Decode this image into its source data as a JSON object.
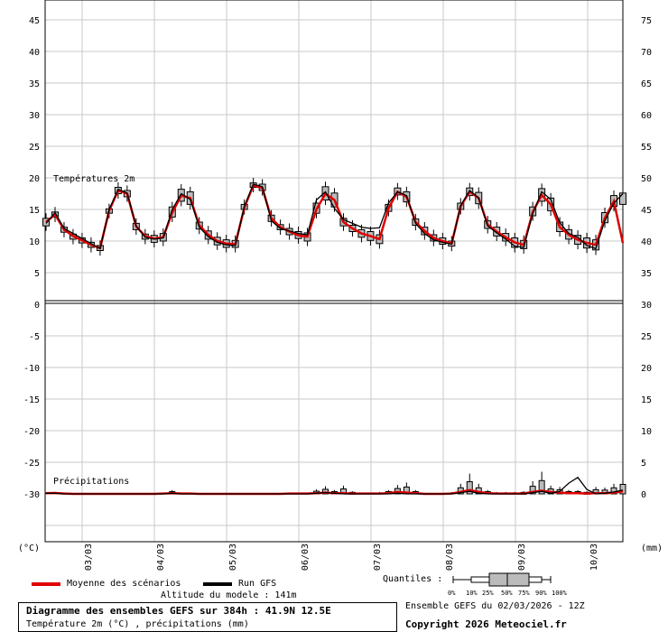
{
  "chart_data": {
    "type": "line",
    "temp_panel_label": "Températures 2m",
    "precip_panel_label": "Précipitations",
    "left_unit": "(°C)",
    "right_unit": "(mm)",
    "temp_left_ticks": [
      45,
      40,
      35,
      30,
      25,
      20,
      15,
      10,
      5,
      0
    ],
    "temp_right_ticks": [
      75,
      70,
      65,
      60,
      55,
      50,
      45,
      40,
      35,
      30
    ],
    "precip_left_ticks": [
      -5,
      -10,
      -15,
      -20,
      -25,
      -30
    ],
    "precip_right_ticks": [
      25,
      20,
      15,
      10,
      5,
      0
    ],
    "x_labels": [
      "03/03",
      "04/03",
      "05/03",
      "06/03",
      "07/03",
      "08/03",
      "09/03",
      "10/03"
    ],
    "x_hours": [
      0,
      6,
      12,
      18,
      24,
      30,
      36,
      42,
      48,
      54,
      60,
      66,
      72,
      78,
      84,
      90,
      96,
      102,
      108,
      114,
      120,
      126,
      132,
      138,
      144,
      150,
      156,
      162,
      168,
      174,
      180,
      186,
      192,
      198,
      204,
      210,
      216,
      222,
      228,
      234,
      240,
      246,
      252,
      258,
      264,
      270,
      276,
      282,
      288,
      294,
      300,
      306,
      312,
      318,
      324,
      330,
      336,
      342,
      348,
      354,
      360,
      366,
      372,
      378,
      384
    ],
    "series": [
      {
        "name": "Moyenne des scénarios",
        "color": "#e00000",
        "values": [
          13,
          14.2,
          11.8,
          10.8,
          10.1,
          9.4,
          8.9,
          14.8,
          18,
          17.5,
          12.3,
          10.8,
          10.4,
          10.6,
          14.5,
          17.2,
          16.8,
          12.5,
          11,
          10,
          9.6,
          9.5,
          15.3,
          18.8,
          18.4,
          13.6,
          12.2,
          11.5,
          10.9,
          10.7,
          15,
          17.5,
          16.5,
          13,
          12,
          11.2,
          10.8,
          10.3,
          15.2,
          17.8,
          17,
          13,
          11.6,
          10.5,
          10,
          9.6,
          15.5,
          17.8,
          16.8,
          12.6,
          11.5,
          10.6,
          9.8,
          9.4,
          14.6,
          17.3,
          15.8,
          12.2,
          11,
          10.2,
          9.7,
          9.4,
          13.6,
          16.3,
          9.7
        ]
      },
      {
        "name": "Run GFS",
        "color": "#000000",
        "values": [
          12.8,
          14.5,
          12,
          11.2,
          10.4,
          9.6,
          8.8,
          15,
          18.2,
          17.6,
          12.4,
          10.6,
          10.3,
          10.5,
          15,
          17.5,
          16.6,
          12.2,
          10.7,
          9.8,
          9.4,
          9.3,
          15.5,
          19,
          18.6,
          13.2,
          12,
          11.6,
          11.2,
          11,
          16.5,
          17.8,
          15.2,
          13.4,
          12.8,
          12.2,
          12,
          12.1,
          16,
          17.8,
          17.2,
          12.8,
          11.2,
          10.2,
          9.8,
          9.5,
          15.6,
          18,
          16.8,
          12.4,
          11.3,
          10.3,
          9.2,
          9,
          14.4,
          17.8,
          16.6,
          12.9,
          11.2,
          10.6,
          9.3,
          8.8,
          13.2,
          16,
          17.5
        ]
      }
    ],
    "temp_spread": [
      [
        12.4,
        13.6
      ],
      [
        13.8,
        14.6
      ],
      [
        11.4,
        12.2
      ],
      [
        10.3,
        11.1
      ],
      [
        9.7,
        10.5
      ],
      [
        9,
        9.8
      ],
      [
        8.5,
        9.3
      ],
      [
        14.4,
        15.1
      ],
      [
        17.5,
        18.5
      ],
      [
        17,
        18
      ],
      [
        11.8,
        12.8
      ],
      [
        10.3,
        11.1
      ],
      [
        9.8,
        10.9
      ],
      [
        10,
        11.2
      ],
      [
        13.8,
        15.4
      ],
      [
        16.3,
        18.2
      ],
      [
        15.8,
        17.8
      ],
      [
        11.9,
        13
      ],
      [
        10.3,
        11.6
      ],
      [
        9.4,
        10.6
      ],
      [
        9,
        10.2
      ],
      [
        9,
        10.1
      ],
      [
        15,
        15.8
      ],
      [
        18.5,
        19.2
      ],
      [
        18,
        19
      ],
      [
        13.1,
        14.1
      ],
      [
        11.8,
        12.6
      ],
      [
        11,
        12
      ],
      [
        10.4,
        11.5
      ],
      [
        10,
        11.3
      ],
      [
        14.4,
        16
      ],
      [
        16.5,
        18.6
      ],
      [
        15.4,
        17.6
      ],
      [
        12.4,
        13.6
      ],
      [
        11.5,
        12.5
      ],
      [
        10.6,
        11.8
      ],
      [
        10.1,
        11.5
      ],
      [
        9.6,
        11
      ],
      [
        14.7,
        15.8
      ],
      [
        17.3,
        18.4
      ],
      [
        16.2,
        17.8
      ],
      [
        12.5,
        13.5
      ],
      [
        11,
        12.2
      ],
      [
        10,
        11
      ],
      [
        9.5,
        10.5
      ],
      [
        9.2,
        10
      ],
      [
        15,
        16
      ],
      [
        17.2,
        18.4
      ],
      [
        15.9,
        17.7
      ],
      [
        12,
        13.2
      ],
      [
        10.8,
        12.2
      ],
      [
        10,
        11.2
      ],
      [
        9,
        10.5
      ],
      [
        8.8,
        10.1
      ],
      [
        14,
        15.4
      ],
      [
        16.3,
        18.3
      ],
      [
        14.8,
        16.8
      ],
      [
        11.5,
        13
      ],
      [
        10.3,
        11.8
      ],
      [
        9.5,
        10.9
      ],
      [
        8.9,
        10.5
      ],
      [
        8.6,
        10.2
      ],
      [
        12.9,
        14.5
      ],
      [
        15.5,
        17.2
      ],
      [
        15.8,
        17.6
      ]
    ],
    "precip": [
      0.1,
      0.15,
      0.05,
      0,
      0,
      0,
      0,
      0,
      0,
      0,
      0,
      0,
      0,
      0.05,
      0.1,
      0.05,
      0.05,
      0,
      0,
      0,
      0,
      0,
      0,
      0,
      0,
      0,
      0,
      0.05,
      0.05,
      0.05,
      0.1,
      0.2,
      0.1,
      0.1,
      0.05,
      0.05,
      0.05,
      0.05,
      0.1,
      0.3,
      0.2,
      0.1,
      0,
      0,
      0,
      0.05,
      0.3,
      0.6,
      0.3,
      0.1,
      0.05,
      0.05,
      0.05,
      0.05,
      0.3,
      0.5,
      0.3,
      0.2,
      0.1,
      0.1,
      0.05,
      0.1,
      0.1,
      0.2,
      0.4
    ],
    "precip_gfs": [
      0.1,
      0.1,
      0,
      0,
      0,
      0,
      0,
      0,
      0,
      0,
      0,
      0,
      0,
      0,
      0.1,
      0,
      0,
      0,
      0,
      0,
      0,
      0,
      0,
      0,
      0,
      0,
      0,
      0,
      0,
      0,
      0.1,
      0.2,
      0.1,
      0,
      0,
      0,
      0,
      0,
      0,
      0.1,
      0,
      0,
      0,
      0,
      0,
      0,
      0.2,
      0.4,
      0.1,
      0,
      0,
      0,
      0,
      0,
      0.2,
      0.4,
      0.1,
      0.4,
      1.7,
      2.6,
      0.7,
      0,
      0.1,
      0.3,
      0.6
    ],
    "precip_max": [
      0.2,
      0.3,
      0.1,
      0,
      0,
      0,
      0,
      0,
      0,
      0,
      0,
      0,
      0.1,
      0.2,
      0.6,
      0.2,
      0.1,
      0,
      0,
      0,
      0,
      0,
      0,
      0,
      0,
      0,
      0,
      0.1,
      0.2,
      0.2,
      0.7,
      1.2,
      0.6,
      1.3,
      0.4,
      0.2,
      0.2,
      0.3,
      0.6,
      1.4,
      1.8,
      0.6,
      0.1,
      0,
      0.1,
      0.3,
      1.6,
      3.2,
      1.6,
      0.6,
      0.3,
      0.3,
      0.3,
      0.4,
      2,
      3.5,
      1.3,
      1.1,
      0.6,
      0.6,
      0.4,
      1.1,
      1,
      1.6,
      2.5
    ]
  },
  "legend": {
    "mean_label": "Moyenne des scénarios",
    "gfs_label": "Run GFS",
    "quantiles_label": "Quantiles :",
    "quantile_ticks": [
      "0%",
      "10%",
      "25%",
      "50%",
      "75%",
      "90%",
      "100%"
    ]
  },
  "footer": {
    "altitude": "Altitude du modele : 141m",
    "title": "Diagramme des ensembles GEFS sur 384h : 41.9N 12.5E",
    "subtitle": "Température 2m (°C) , précipitations (mm)",
    "ensemble": "Ensemble GEFS du 02/03/2026 - 12Z",
    "copyright": "Copyright 2026 Meteociel.fr"
  }
}
